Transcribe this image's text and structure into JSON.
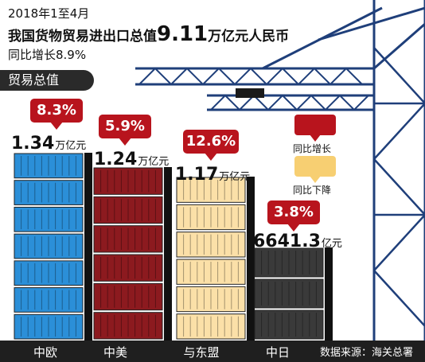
{
  "header": {
    "line1": "2018年1至4月",
    "line2_prefix": "我国货物贸易进出口总值",
    "line2_value": "9.11",
    "line2_suffix": "万亿元人民币",
    "line3": "同比增长8.9%"
  },
  "section_label": "贸易总值",
  "legend": {
    "increase_label": "同比增长",
    "decrease_label": "同比下降",
    "increase_color": "#b8141d",
    "decrease_color": "#f7cf72"
  },
  "source": "数据来源：海关总署",
  "chart_data": {
    "type": "bar",
    "unit_note": "values in 亿元",
    "categories": [
      "中欧",
      "中美",
      "与东盟",
      "中日"
    ],
    "values": [
      13400,
      12400,
      11700,
      6641.3
    ],
    "value_labels": [
      {
        "num": "1.34",
        "unit": "万亿元"
      },
      {
        "num": "1.24",
        "unit": "万亿元"
      },
      {
        "num": "1.17",
        "unit": "万亿元"
      },
      {
        "num": "6641.3",
        "unit": "亿元"
      }
    ],
    "growth": [
      "8.3%",
      "5.9%",
      "12.6%",
      "3.8%"
    ],
    "growth_direction": [
      "increase",
      "increase",
      "increase",
      "increase"
    ],
    "bar_colors": [
      "#2b8fd8",
      "#8c1a1f",
      "#fbe0a8",
      "#3a3a3a"
    ]
  }
}
